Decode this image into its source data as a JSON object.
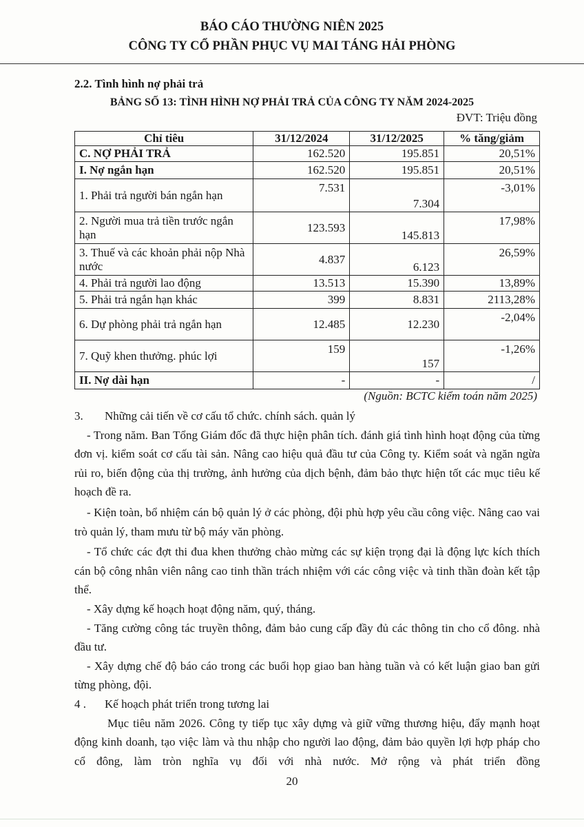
{
  "header": {
    "line1": "BÁO CÁO THƯỜNG NIÊN 2025",
    "line2": "CÔNG TY CỔ PHẦN PHỤC VỤ MAI TÁNG HẢI PHÒNG"
  },
  "section_heading": "2.2.   Tình hình nợ phải trả",
  "table_title": "BẢNG SỐ 13: TÌNH HÌNH NỢ PHẢI TRẢ CỦA CÔNG TY NĂM 2024-2025",
  "unit": "ĐVT: Triệu đồng",
  "table": {
    "headers": [
      "Chỉ tiêu",
      "31/12/2024",
      "31/12/2025",
      "% tăng/giảm"
    ],
    "rows": [
      {
        "label": "C. NỢ PHẢI TRẢ",
        "v2024": "162.520",
        "v2025": "195.851",
        "pct": "20,51%"
      },
      {
        "label": "I. Nợ ngắn hạn",
        "v2024": "162.520",
        "v2025": "195.851",
        "pct": "20,51%"
      },
      {
        "label": "1. Phải trả người bán ngắn hạn",
        "v2024": "7.531",
        "v2025": "7.304",
        "pct": "-3,01%"
      },
      {
        "label": "2. Người mua trả tiền trước ngắn hạn",
        "v2024": "123.593",
        "v2025": "145.813",
        "pct": "17,98%"
      },
      {
        "label": "3. Thuế và các khoản phải nộp Nhà nước",
        "v2024": "4.837",
        "v2025": "6.123",
        "pct": "26,59%"
      },
      {
        "label": "4. Phải trả người lao động",
        "v2024": "13.513",
        "v2025": "15.390",
        "pct": "13,89%"
      },
      {
        "label": "5. Phải trả ngắn hạn khác",
        "v2024": "399",
        "v2025": "8.831",
        "pct": "2113,28%"
      },
      {
        "label": "6. Dự phòng phải trả ngắn hạn",
        "v2024": "12.485",
        "v2025": "12.230",
        "pct": "-2,04%"
      },
      {
        "label": "7. Quỹ khen thưởng. phúc lợi",
        "v2024": "159",
        "v2025": "157",
        "pct": "-1,26%"
      },
      {
        "label": "II. Nợ dài hạn",
        "v2024": "-",
        "v2025": "-",
        "pct": "/"
      }
    ]
  },
  "source": "(Nguồn: BCTC kiểm toán năm 2025)",
  "sec3": {
    "num": "3.",
    "title": "Những cải tiến về cơ cấu tổ chức. chính sách. quản lý",
    "bullets": [
      "-  Trong năm. Ban Tổng Giám đốc đã thực hiện phân tích. đánh giá tình hình hoạt động của từng đơn vị. kiểm soát cơ cấu tài sản. Nâng cao hiệu quả đầu tư của Công ty. Kiểm soát và ngăn ngừa rủi ro, biến động của thị trường, ảnh hưởng của dịch bệnh, đảm bảo thực hiện tốt các mục tiêu kế hoạch đề ra.",
      "-  Kiện toàn, bổ nhiệm cán bộ quản lý ở các phòng, đội phù hợp yêu cầu công việc. Nâng cao vai trò quản lý, tham mưu từ bộ máy văn phòng.",
      "-  Tổ chức các đợt thi đua khen thưởng chào mừng các sự kiện trọng đại là động lực kích thích cán bộ công nhân viên nâng cao tinh thần trách nhiệm với các công việc và tinh thần đoàn kết tập thể.",
      "-  Xây dựng kế hoạch hoạt động năm, quý, tháng.",
      "-  Tăng cường công tác truyền thông, đảm bảo cung cấp đầy đủ các thông tin cho cổ đông. nhà đầu tư.",
      "-  Xây dựng chế độ báo cáo trong các buổi họp giao ban hàng tuần và có kết luận giao ban gửi từng phòng, đội."
    ]
  },
  "sec4": {
    "num": "4 .",
    "title": "Kế hoạch phát triển trong tương lai",
    "paragraph": "Mục tiêu năm 2026. Công ty tiếp tục xây dựng và giữ vững thương hiệu, đẩy mạnh hoạt động kinh doanh, tạo việc làm và thu nhập cho người lao động, đảm bảo quyền lợi hợp pháp cho cổ đông, làm tròn nghĩa vụ đối với nhà nước. Mở rộng và phát triển đồng"
  },
  "page_number": "20"
}
